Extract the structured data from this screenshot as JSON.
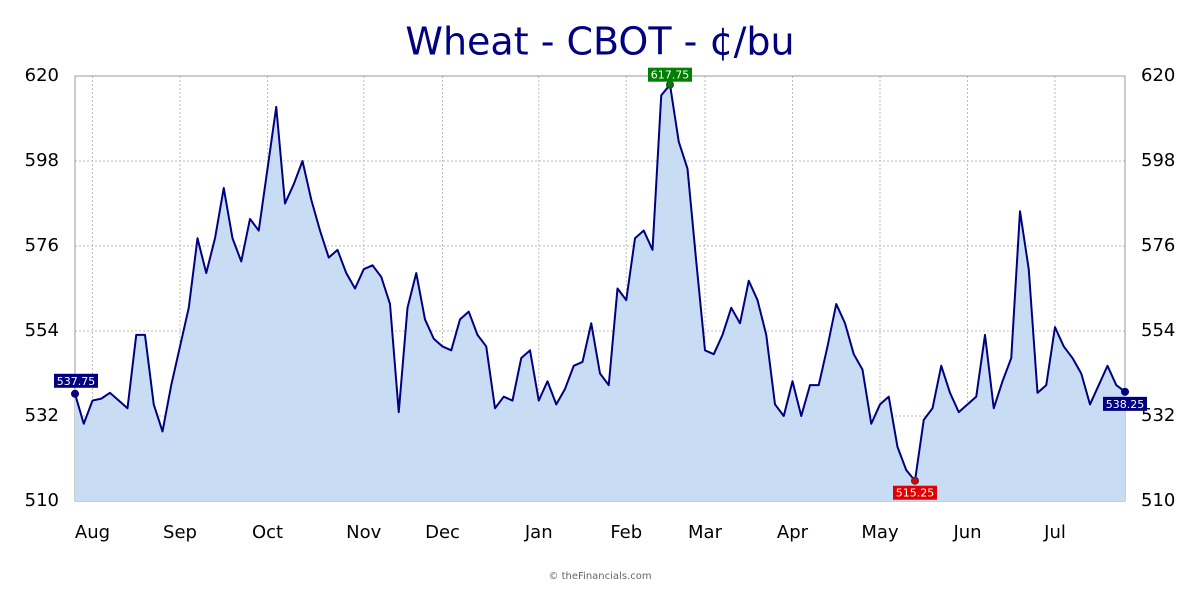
{
  "chart_data": {
    "type": "area",
    "title": "Wheat - CBOT - ¢/bu",
    "footer": "© theFinancials.com",
    "categories": [
      null,
      null,
      "Aug",
      null,
      null,
      null,
      null,
      null,
      null,
      null,
      null,
      null,
      "Sep",
      null,
      null,
      null,
      null,
      null,
      null,
      null,
      null,
      null,
      "Oct",
      null,
      null,
      null,
      null,
      null,
      null,
      null,
      null,
      null,
      null,
      "Nov",
      null,
      null,
      null,
      null,
      null,
      null,
      null,
      null,
      "Dec",
      null,
      null,
      null,
      null,
      null,
      null,
      null,
      null,
      null,
      null,
      "Jan",
      null,
      null,
      null,
      null,
      null,
      null,
      null,
      null,
      null,
      "Feb",
      null,
      null,
      null,
      null,
      null,
      null,
      null,
      null,
      "Mar",
      null,
      null,
      null,
      null,
      null,
      null,
      null,
      null,
      null,
      "Apr",
      null,
      null,
      null,
      null,
      null,
      null,
      null,
      null,
      null,
      "May",
      null,
      null,
      null,
      null,
      null,
      null,
      null,
      null,
      null,
      "Jun",
      null,
      null,
      null,
      null,
      null,
      null,
      null,
      null,
      null,
      "Jul",
      null,
      null,
      null,
      null,
      null,
      null,
      null,
      null
    ],
    "series": [
      {
        "color": "#000080",
        "fill": "#c8dcf4",
        "values": [
          537.75,
          530,
          536,
          536.5,
          538,
          536,
          534,
          553,
          553,
          535,
          528,
          540,
          550,
          560,
          578,
          569,
          578,
          591,
          578,
          572,
          583,
          580,
          596,
          612,
          587,
          592,
          598,
          588,
          580,
          573,
          575,
          569,
          565,
          570,
          571,
          568,
          561,
          533,
          560,
          569,
          557,
          552,
          550,
          549,
          557,
          559,
          553,
          550,
          534,
          537,
          536,
          547,
          549,
          536,
          541,
          535,
          539,
          545,
          546,
          556,
          543,
          540,
          565,
          562,
          578,
          580,
          575,
          615,
          617.75,
          603,
          596,
          572,
          549,
          548,
          553,
          560,
          556,
          567,
          562,
          553,
          535,
          532,
          541,
          532,
          540,
          540,
          550,
          561,
          556,
          548,
          544,
          530,
          535,
          537,
          524,
          518,
          515.25,
          531,
          534,
          545,
          538,
          533,
          535,
          537,
          553,
          534,
          541,
          547,
          585,
          570,
          538,
          540,
          555,
          550,
          547,
          543,
          535,
          540,
          545,
          540,
          538.25
        ]
      }
    ],
    "ylim": [
      510,
      620
    ],
    "yticks": [
      510,
      532,
      554,
      576,
      598,
      620
    ],
    "y2lim": [
      510,
      620
    ],
    "y2ticks": [
      510,
      532,
      554,
      576,
      598,
      620
    ],
    "grid": true
  }
}
